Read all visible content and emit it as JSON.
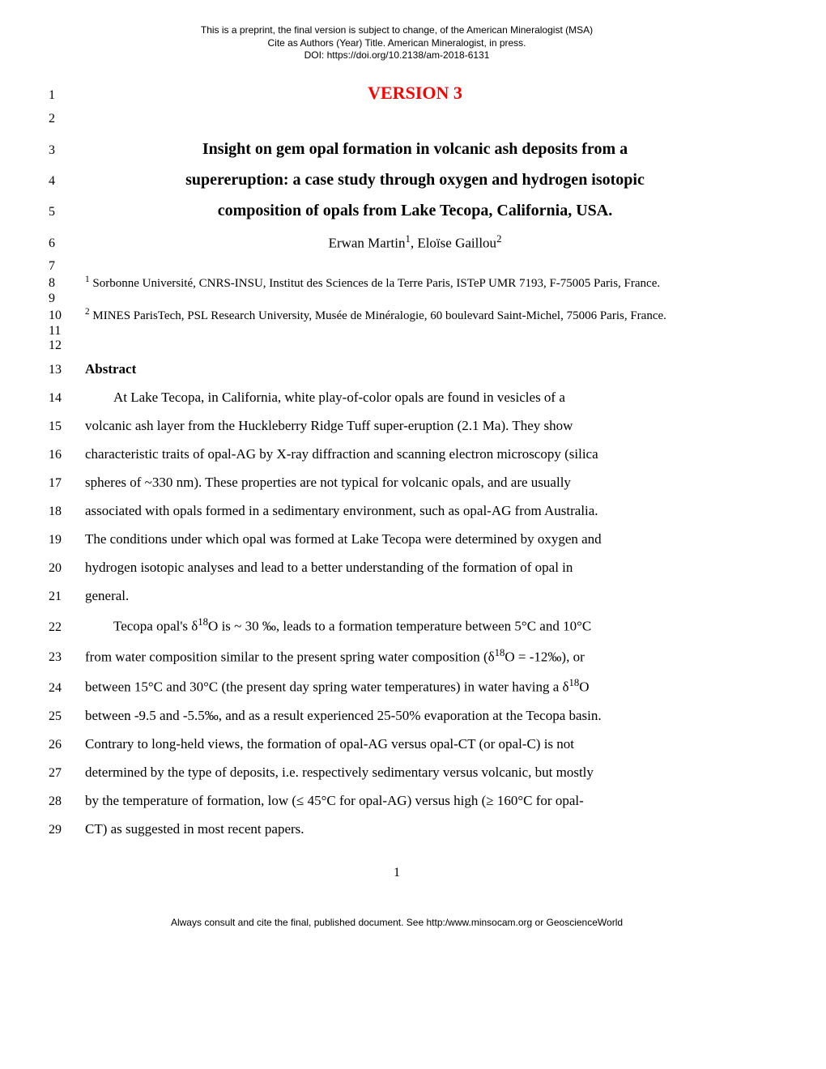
{
  "preprint": {
    "line1": "This is a preprint, the final version is subject to change, of the American Mineralogist (MSA)",
    "line2": "Cite as Authors (Year) Title. American Mineralogist, in press.",
    "line3": "DOI: https://doi.org/10.2138/am-2018-6131"
  },
  "version": "VERSION 3",
  "title": {
    "line1": "Insight on gem opal formation in volcanic ash deposits from a",
    "line2": "supereruption: a case study through oxygen and hydrogen isotopic",
    "line3": "composition of opals from Lake Tecopa, California, USA."
  },
  "authors_html": "Erwan Martin<sup>1</sup>, Eloïse Gaillou<sup>2</sup>",
  "affiliations": {
    "a1_html": "<sup>1</sup> Sorbonne Université, CNRS-INSU, Institut des Sciences de la Terre Paris, ISTeP UMR 7193, F-75005 Paris, France.",
    "a2_html": "<sup>2</sup> MINES ParisTech, PSL Research University, Musée de Minéralogie, 60 boulevard Saint-Michel, 75006 Paris, France."
  },
  "abstract_heading": "Abstract",
  "abstract_lines": {
    "l14": "At Lake Tecopa, in California, white play-of-color opals are found in vesicles of a",
    "l15": "volcanic ash layer from the Huckleberry Ridge Tuff super-eruption (2.1 Ma). They show",
    "l16": "characteristic traits of opal-AG by X-ray diffraction and scanning electron microscopy (silica",
    "l17": "spheres of ~330 nm). These properties are not typical for volcanic opals, and are usually",
    "l18": "associated with opals formed in a sedimentary environment, such as opal-AG from Australia.",
    "l19": "The conditions under which opal was formed at Lake Tecopa were determined by oxygen and",
    "l20": "hydrogen isotopic analyses and lead to a better understanding of the formation of opal in",
    "l21": "general.",
    "l22_html": "Tecopa opal's δ<sup>18</sup>O is ~ 30 ‰, leads to a formation temperature between 5°C and 10°C",
    "l23_html": "from water composition similar to the present spring water composition (δ<sup>18</sup>O = -12‰), or",
    "l24_html": "between 15°C and 30°C (the present day spring water temperatures) in water having a δ<sup>18</sup>O",
    "l25": "between -9.5 and -5.5‰, and as a result experienced 25-50% evaporation at the Tecopa basin.",
    "l26": "Contrary to long-held views, the formation of opal-AG versus opal-CT (or opal-C) is not",
    "l27": "determined by the type of deposits, i.e. respectively sedimentary versus volcanic, but mostly",
    "l28": "by the temperature of formation, low (≤ 45°C for opal-AG) versus high (≥ 160°C for opal-",
    "l29": "CT) as suggested in most recent papers."
  },
  "line_numbers": {
    "n1": "1",
    "n2": "2",
    "n3": "3",
    "n4": "4",
    "n5": "5",
    "n6": "6",
    "n7": "7",
    "n8": "8",
    "n9": "9",
    "n10": "10",
    "n11": "11",
    "n12": "12",
    "n13": "13",
    "n14": "14",
    "n15": "15",
    "n16": "16",
    "n17": "17",
    "n18": "18",
    "n19": "19",
    "n20": "20",
    "n21": "21",
    "n22": "22",
    "n23": "23",
    "n24": "24",
    "n25": "25",
    "n26": "26",
    "n27": "27",
    "n28": "28",
    "n29": "29"
  },
  "page_number": "1",
  "footer": "Always consult and cite the final, published document. See http:/www.minsocam.org or GeoscienceWorld"
}
